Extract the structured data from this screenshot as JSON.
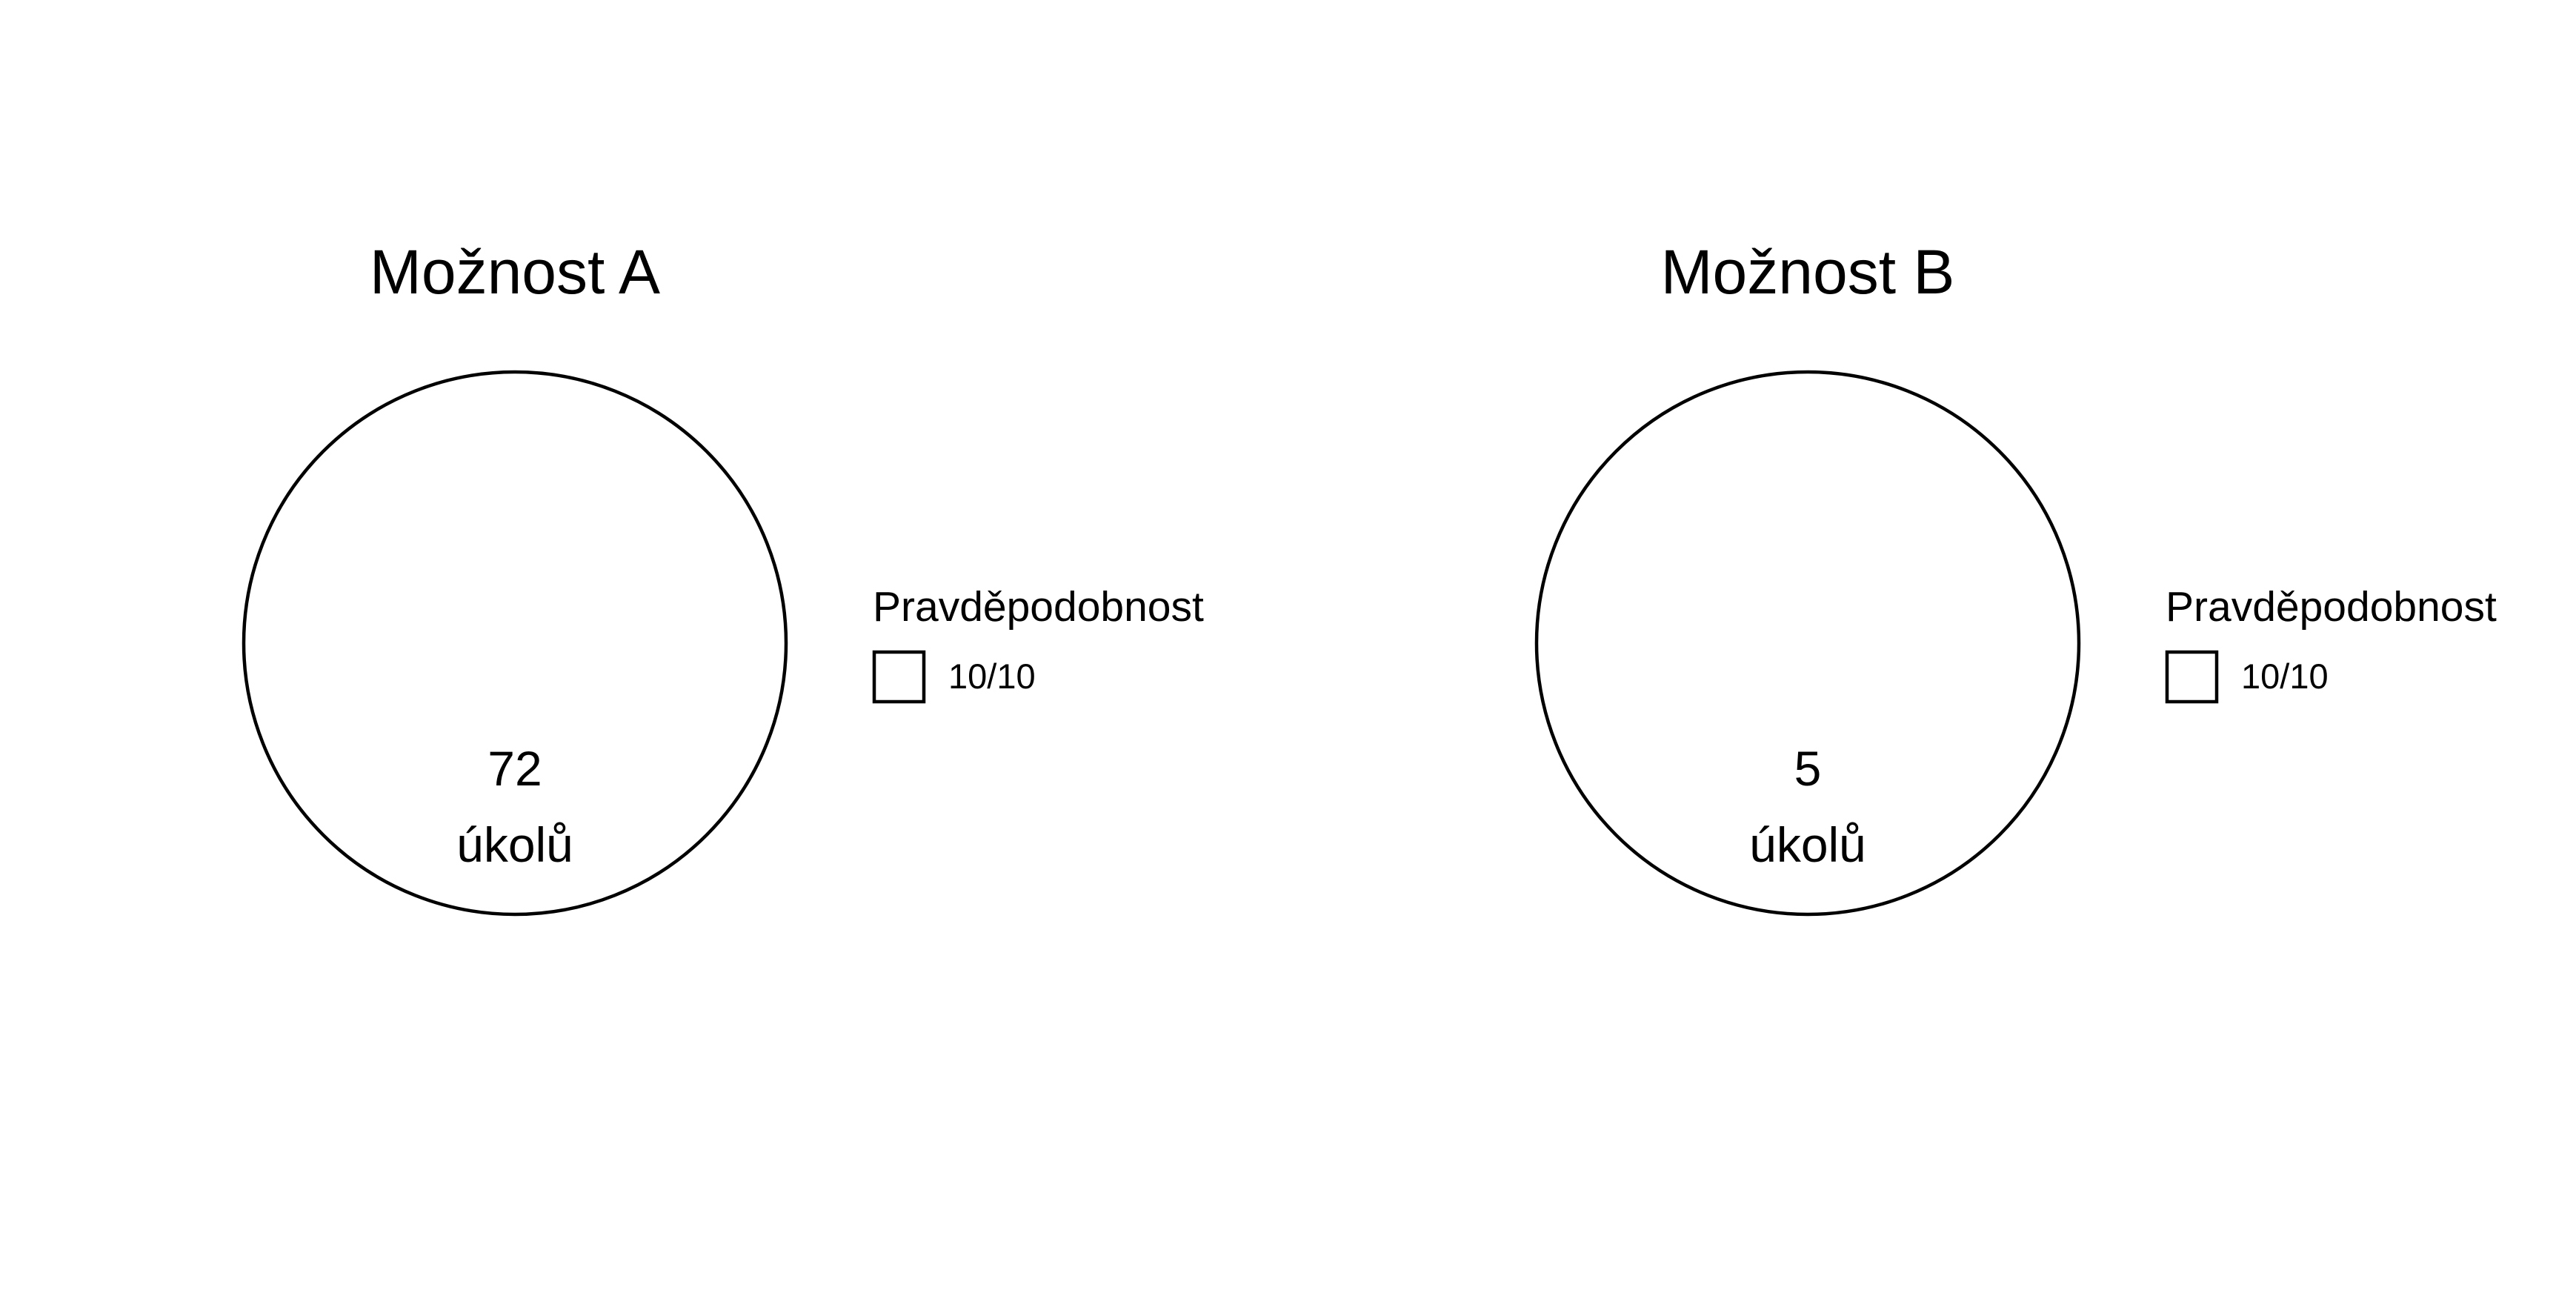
{
  "chart_data": [
    {
      "type": "pie",
      "title": "Možnost A",
      "slices": [
        {
          "label": "10/10",
          "value": 1.0,
          "color": "#ffffff"
        }
      ],
      "count": "72",
      "count_unit": "úkolů",
      "legend": {
        "title": "Pravděpodobnost",
        "entries": [
          "10/10"
        ],
        "placement": "right"
      }
    },
    {
      "type": "pie",
      "title": "Možnost B",
      "slices": [
        {
          "label": "10/10",
          "value": 1.0,
          "color": "#ffffff"
        }
      ],
      "count": "5",
      "count_unit": "úkolů",
      "legend": {
        "title": "Pravděpodobnost",
        "entries": [
          "10/10"
        ],
        "placement": "right"
      }
    }
  ]
}
